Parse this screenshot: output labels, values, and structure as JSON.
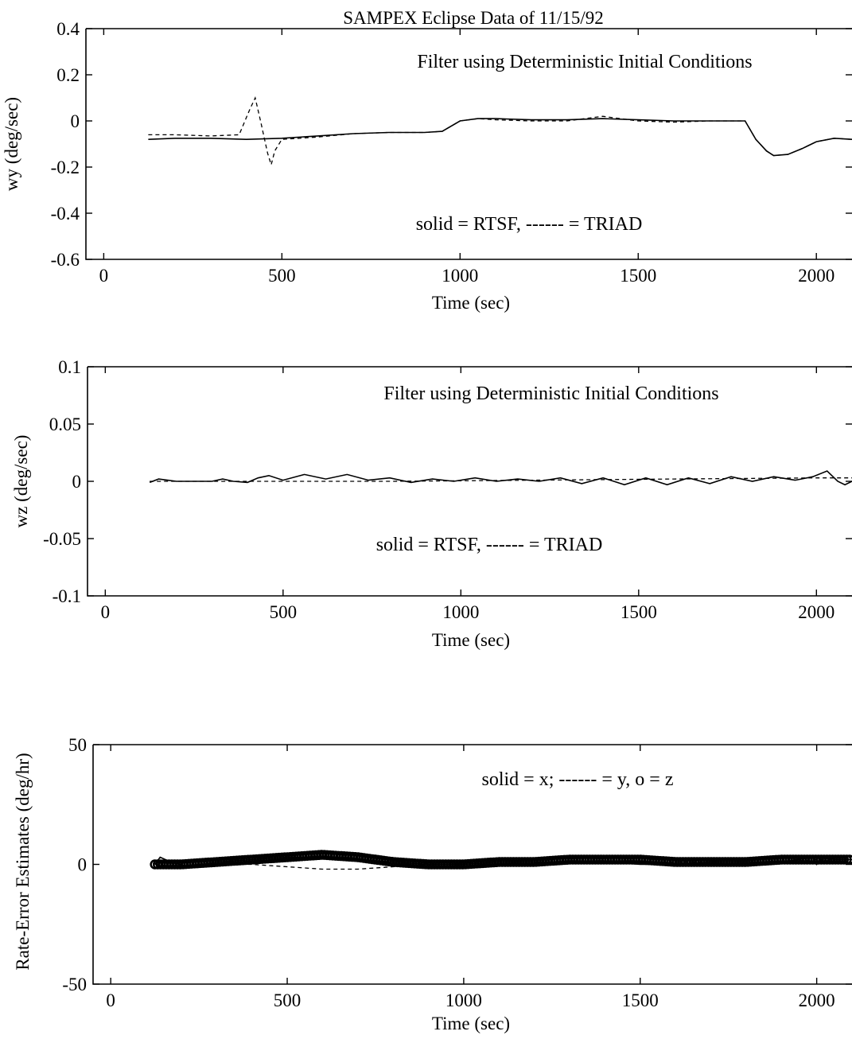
{
  "figure_title": "SAMPEX Eclipse Data of 11/15/92",
  "chart_data": [
    {
      "type": "line",
      "title": "SAMPEX Eclipse Data of 11/15/92",
      "xlabel": "Time (sec)",
      "ylabel": "wy (deg/sec)",
      "xlim": [
        -50,
        2100
      ],
      "ylim": [
        -0.6,
        0.4
      ],
      "xticks": [
        "0",
        "500",
        "1000",
        "1500",
        "2000"
      ],
      "yticks": [
        "-0.6",
        "-0.4",
        "-0.2",
        "0",
        "0.2",
        "0.4"
      ],
      "annotations": [
        "Filter using Deterministic Initial Conditions",
        "solid = RTSF, ------ = TRIAD"
      ],
      "series": [
        {
          "name": "RTSF",
          "style": "solid",
          "x": [
            125,
            200,
            300,
            400,
            500,
            600,
            700,
            800,
            900,
            950,
            1000,
            1050,
            1100,
            1200,
            1300,
            1400,
            1500,
            1600,
            1700,
            1800,
            1830,
            1860,
            1880,
            1920,
            1960,
            2000,
            2050,
            2100
          ],
          "y": [
            -0.08,
            -0.075,
            -0.075,
            -0.08,
            -0.075,
            -0.065,
            -0.055,
            -0.05,
            -0.05,
            -0.045,
            0.0,
            0.01,
            0.01,
            0.005,
            0.005,
            0.01,
            0.005,
            0.0,
            0.0,
            0.0,
            -0.08,
            -0.13,
            -0.15,
            -0.145,
            -0.12,
            -0.09,
            -0.075,
            -0.08
          ]
        },
        {
          "name": "TRIAD",
          "style": "dashed",
          "x": [
            125,
            200,
            300,
            380,
            410,
            425,
            440,
            460,
            470,
            480,
            500,
            600,
            700,
            800,
            900,
            950,
            1000,
            1050,
            1100,
            1200,
            1300,
            1400,
            1500,
            1600,
            1700,
            1800,
            1830,
            1860,
            1880,
            1920,
            1960,
            2000,
            2050,
            2100
          ],
          "y": [
            -0.06,
            -0.06,
            -0.065,
            -0.06,
            0.05,
            0.1,
            0.0,
            -0.14,
            -0.19,
            -0.13,
            -0.08,
            -0.07,
            -0.055,
            -0.05,
            -0.05,
            -0.045,
            0.0,
            0.01,
            0.005,
            0.0,
            0.0,
            0.02,
            0.0,
            -0.005,
            0.0,
            0.0,
            -0.08,
            -0.13,
            -0.15,
            -0.145,
            -0.12,
            -0.09,
            -0.075,
            -0.08
          ]
        }
      ]
    },
    {
      "type": "line",
      "xlabel": "Time (sec)",
      "ylabel": "wz (deg/sec)",
      "xlim": [
        -50,
        2100
      ],
      "ylim": [
        -0.1,
        0.1
      ],
      "xticks": [
        "0",
        "500",
        "1000",
        "1500",
        "2000"
      ],
      "yticks": [
        "-0.1",
        "-0.05",
        "0",
        "0.05",
        "0.1"
      ],
      "annotations": [
        "Filter using Deterministic Initial Conditions",
        "solid = RTSF, ------ = TRIAD"
      ],
      "series": [
        {
          "name": "RTSF",
          "style": "solid",
          "x": [
            125,
            150,
            175,
            200,
            250,
            300,
            330,
            360,
            400,
            430,
            460,
            500,
            560,
            620,
            680,
            740,
            800,
            860,
            920,
            980,
            1040,
            1100,
            1160,
            1220,
            1280,
            1340,
            1400,
            1460,
            1520,
            1580,
            1640,
            1700,
            1760,
            1820,
            1880,
            1940,
            1990,
            2030,
            2060,
            2080,
            2100
          ],
          "y": [
            -0.001,
            0.002,
            0.001,
            0.0,
            0.0,
            0.0,
            0.002,
            0.0,
            -0.001,
            0.003,
            0.005,
            0.001,
            0.006,
            0.002,
            0.006,
            0.001,
            0.003,
            -0.001,
            0.002,
            0.0,
            0.003,
            0.0,
            0.002,
            0.0,
            0.003,
            -0.002,
            0.003,
            -0.003,
            0.003,
            -0.003,
            0.003,
            -0.002,
            0.004,
            0.0,
            0.004,
            0.001,
            0.004,
            0.009,
            0.0,
            -0.003,
            0.0
          ]
        },
        {
          "name": "TRIAD",
          "style": "dashed",
          "x": [
            125,
            400,
            800,
            1200,
            1600,
            2000,
            2100
          ],
          "y": [
            0.0,
            0.0,
            0.0,
            0.001,
            0.002,
            0.003,
            0.003
          ]
        }
      ]
    },
    {
      "type": "line",
      "xlabel": "Time (sec)",
      "ylabel": "Rate-Error Estimates (deg/hr)",
      "xlim": [
        -50,
        2100
      ],
      "ylim": [
        -50,
        50
      ],
      "xticks": [
        "0",
        "500",
        "1000",
        "1500",
        "2000"
      ],
      "yticks": [
        "-50",
        "0",
        "50"
      ],
      "annotations": [
        "solid = x; ------ = y, o = z"
      ],
      "series": [
        {
          "name": "x",
          "style": "solid",
          "x": [
            125,
            140,
            170,
            220,
            300,
            400,
            500,
            600,
            700,
            800,
            900,
            1000,
            1100,
            1200,
            1300,
            1400,
            1500,
            1600,
            1700,
            1800,
            1900,
            1990,
            2000,
            2020,
            2050,
            2100
          ],
          "y": [
            0,
            3,
            1,
            -1,
            1,
            2,
            3,
            3,
            2,
            1,
            0,
            0,
            1,
            1,
            1,
            1,
            0,
            0,
            1,
            1,
            1,
            3,
            0,
            3,
            2,
            2
          ]
        },
        {
          "name": "y",
          "style": "dashed",
          "x": [
            125,
            200,
            300,
            400,
            500,
            600,
            700,
            800,
            900,
            1000,
            1100,
            1200,
            1300,
            1400,
            1500,
            1600,
            1700,
            1800,
            1900,
            2000,
            2100
          ],
          "y": [
            0,
            -1,
            0,
            0,
            -1,
            -2,
            -2,
            -1,
            0,
            0,
            1,
            1,
            1,
            1,
            1,
            1,
            1,
            1,
            1,
            2,
            2
          ]
        },
        {
          "name": "z",
          "style": "marker-o",
          "x_start": 125,
          "x_end": 2100,
          "x_step": 8,
          "knots_x": [
            125,
            200,
            300,
            400,
            500,
            600,
            700,
            800,
            900,
            1000,
            1100,
            1200,
            1300,
            1400,
            1500,
            1600,
            1700,
            1800,
            1900,
            2000,
            2100
          ],
          "knots_y": [
            0,
            0,
            1,
            2,
            3,
            4,
            3,
            1,
            0,
            0,
            1,
            1,
            2,
            2,
            2,
            1,
            1,
            1,
            2,
            2,
            2
          ]
        }
      ]
    }
  ]
}
